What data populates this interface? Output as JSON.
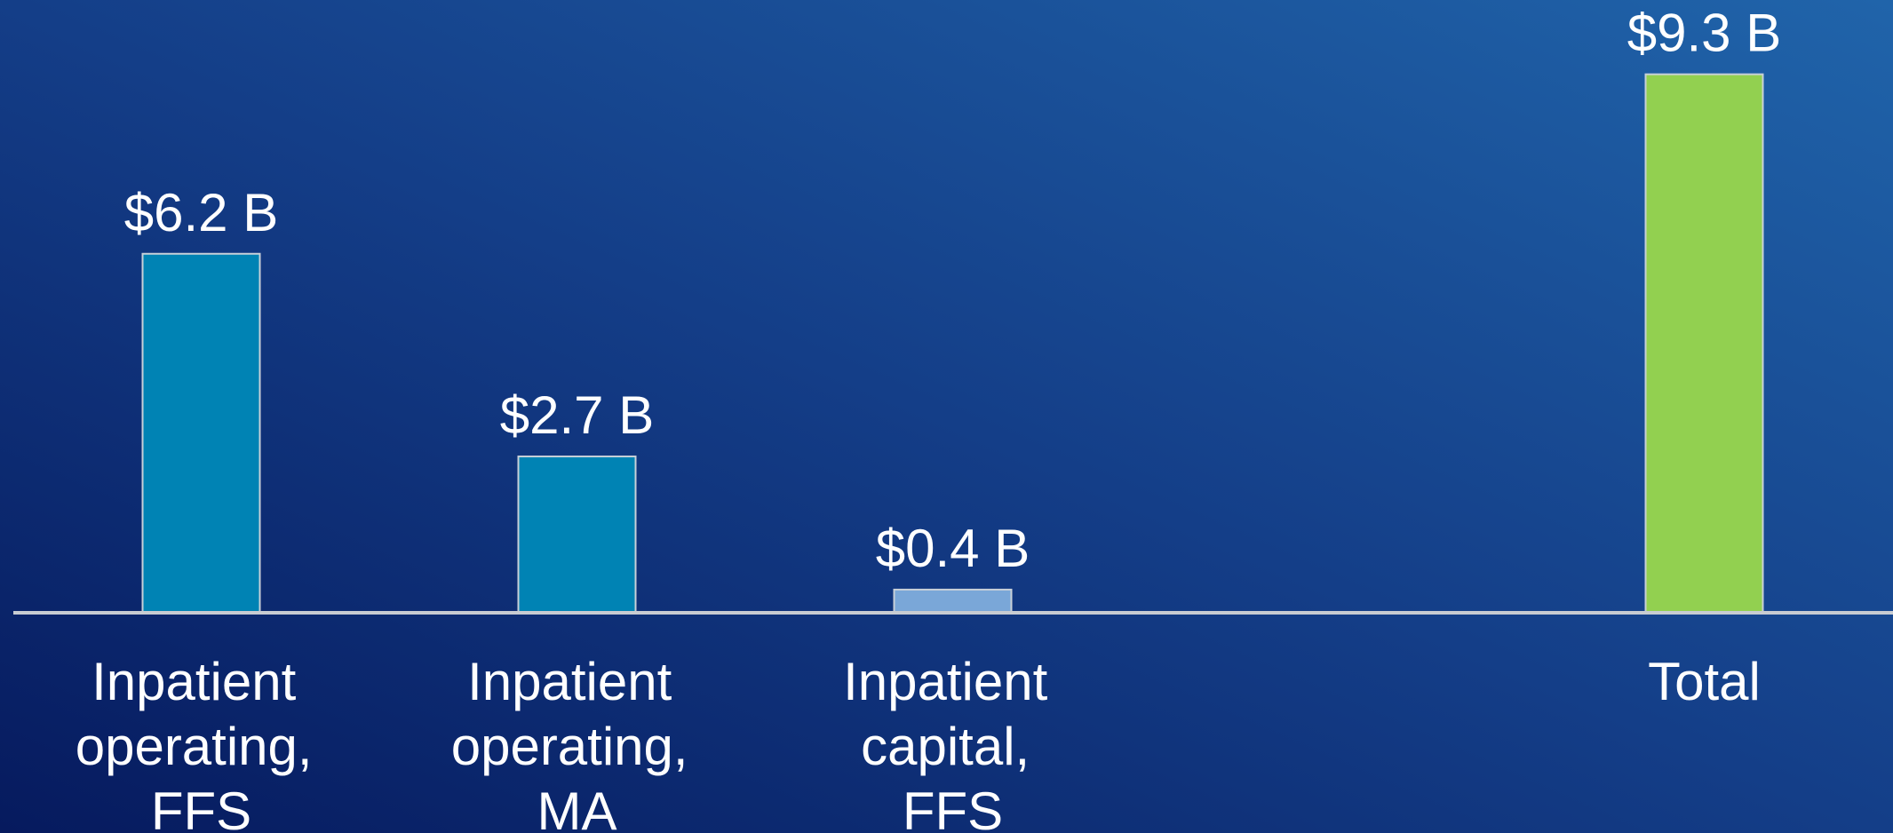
{
  "chart_data": {
    "type": "bar",
    "categories": [
      "Inpatient operating, FFS",
      "Inpatient operating, MA",
      "Inpatient capital, FFS",
      null,
      "Total"
    ],
    "values": [
      6.2,
      2.7,
      0.4,
      null,
      9.3
    ],
    "value_labels": [
      "$6.2 B",
      "$2.7 B",
      "$0.4 B",
      null,
      "$9.3 B"
    ],
    "colors": [
      "#0083b4",
      "#0083b4",
      "#7aa7d8",
      null,
      "#92d050"
    ],
    "ylim": [
      0,
      10
    ]
  }
}
